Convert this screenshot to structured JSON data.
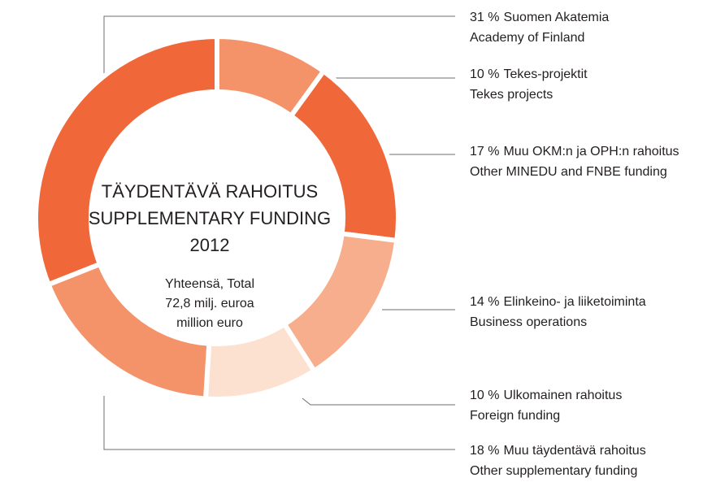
{
  "chart_data": {
    "type": "pie",
    "center_text": [
      "TÄYDENTÄVÄ RAHOITUS",
      "SUPPLEMENTARY FUNDING",
      "2012",
      "Yhteensä, Total",
      "72,8 milj. euroa",
      "million euro"
    ],
    "categories": [
      [
        "Suomen Akatemia",
        "Academy of Finland"
      ],
      [
        "Tekes-projektit",
        "Tekes projects"
      ],
      [
        "Muu OKM:n ja OPH:n rahoitus",
        "Other MINEDU and FNBE funding"
      ],
      [
        "Elinkeino- ja liiketoiminta",
        "Business operations"
      ],
      [
        "Ulkomainen rahoitus",
        "Foreign funding"
      ],
      [
        "Muu täydentävä rahoitus",
        "Other supplementary funding"
      ]
    ],
    "values": [
      31,
      10,
      17,
      14,
      10,
      18
    ],
    "value_labels": [
      "31 %",
      "10 %",
      "17 %",
      "14 %",
      "10 %",
      "18 %"
    ],
    "colors": [
      "#f0683a",
      "#f4936a",
      "#f0683a",
      "#f7ae8c",
      "#fde1d0",
      "#f4936a"
    ]
  }
}
